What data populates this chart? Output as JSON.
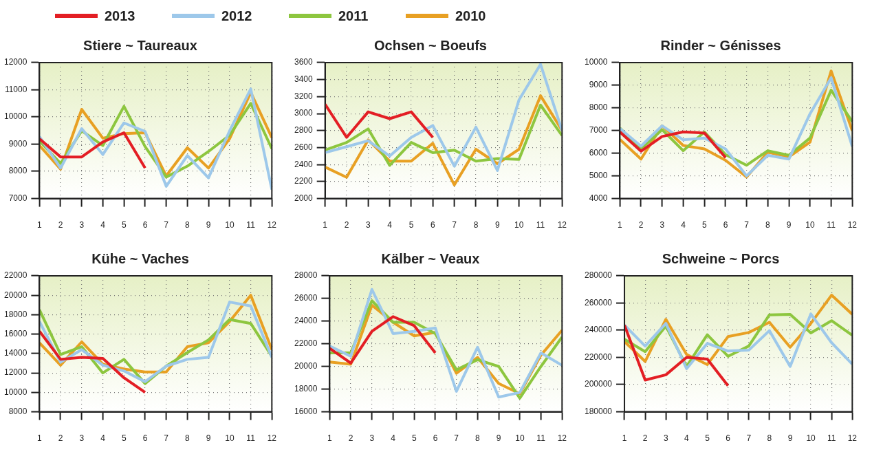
{
  "chart_data": [
    {
      "type": "line",
      "title": "Stiere ~ Taureaux",
      "x": [
        1,
        2,
        3,
        4,
        5,
        6,
        7,
        8,
        9,
        10,
        11,
        12
      ],
      "xlim": [
        1,
        12
      ],
      "xticks": [
        1,
        2,
        3,
        4,
        5,
        6,
        7,
        8,
        9,
        10,
        11,
        12
      ],
      "ylim": [
        7000,
        12000
      ],
      "yticks": [
        7000,
        8000,
        9000,
        10000,
        11000,
        12000
      ],
      "grid": true,
      "legend": "top",
      "series": [
        {
          "name": "2013",
          "color": "#e31e24",
          "values": [
            9200,
            8530,
            8530,
            9080,
            9420,
            8120,
            null,
            null,
            null,
            null,
            null,
            null
          ]
        },
        {
          "name": "2012",
          "color": "#9dc8ea",
          "values": [
            9280,
            8120,
            9570,
            8620,
            9780,
            9470,
            7450,
            8580,
            7760,
            9490,
            11030,
            7330
          ]
        },
        {
          "name": "2011",
          "color": "#8dc63f",
          "values": [
            9120,
            8290,
            9490,
            8950,
            10390,
            8910,
            7790,
            8190,
            8730,
            9330,
            10500,
            8830
          ]
        },
        {
          "name": "2010",
          "color": "#e8a023",
          "values": [
            8950,
            8080,
            10280,
            9220,
            9390,
            9420,
            7830,
            8870,
            8120,
            9200,
            10900,
            9240
          ]
        }
      ]
    },
    {
      "type": "line",
      "title": "Ochsen ~ Boeufs",
      "x": [
        1,
        2,
        3,
        4,
        5,
        6,
        7,
        8,
        9,
        10,
        11,
        12
      ],
      "xlim": [
        1,
        12
      ],
      "xticks": [
        1,
        2,
        3,
        4,
        5,
        6,
        7,
        8,
        9,
        10,
        11,
        12
      ],
      "ylim": [
        2000,
        3600
      ],
      "yticks": [
        2000,
        2200,
        2400,
        2600,
        2800,
        3000,
        3200,
        3400,
        3600
      ],
      "grid": true,
      "series": [
        {
          "color": "#e31e24",
          "values": [
            3110,
            2720,
            3020,
            2940,
            3020,
            2720,
            null,
            null,
            null,
            null,
            null,
            null
          ]
        },
        {
          "color": "#9dc8ea",
          "values": [
            2540,
            2610,
            2680,
            2500,
            2720,
            2860,
            2380,
            2840,
            2330,
            3160,
            3580,
            2800
          ]
        },
        {
          "color": "#8dc63f",
          "values": [
            2570,
            2660,
            2820,
            2390,
            2660,
            2540,
            2570,
            2440,
            2470,
            2460,
            3100,
            2740
          ]
        },
        {
          "color": "#e8a023",
          "values": [
            2370,
            2250,
            2690,
            2440,
            2440,
            2650,
            2160,
            2580,
            2410,
            2580,
            3210,
            2800
          ]
        }
      ]
    },
    {
      "type": "line",
      "title": "Rinder ~ Génisses",
      "x": [
        1,
        2,
        3,
        4,
        5,
        6,
        7,
        8,
        9,
        10,
        11,
        12
      ],
      "xlim": [
        1,
        12
      ],
      "xticks": [
        1,
        2,
        3,
        4,
        5,
        6,
        7,
        8,
        9,
        10,
        11,
        12
      ],
      "ylim": [
        4000,
        10000
      ],
      "yticks": [
        4000,
        5000,
        6000,
        7000,
        8000,
        9000,
        10000
      ],
      "grid": true,
      "series": [
        {
          "color": "#e31e24",
          "values": [
            6940,
            6090,
            6740,
            6940,
            6890,
            5810,
            null,
            null,
            null,
            null,
            null,
            null
          ]
        },
        {
          "color": "#9dc8ea",
          "values": [
            7090,
            6310,
            7210,
            6590,
            6670,
            6190,
            5000,
            5910,
            5740,
            7740,
            9330,
            6290
          ]
        },
        {
          "color": "#8dc63f",
          "values": [
            7110,
            6190,
            7040,
            6110,
            6940,
            5940,
            5470,
            6110,
            5910,
            6670,
            8780,
            7390
          ]
        },
        {
          "color": "#e8a023",
          "values": [
            6610,
            5740,
            7210,
            6340,
            6190,
            5690,
            4950,
            6040,
            5840,
            6490,
            9630,
            6990
          ]
        }
      ]
    },
    {
      "type": "line",
      "title": "Kühe ~ Vaches",
      "x": [
        1,
        2,
        3,
        4,
        5,
        6,
        7,
        8,
        9,
        10,
        11,
        12
      ],
      "xlim": [
        1,
        12
      ],
      "xticks": [
        1,
        2,
        3,
        4,
        5,
        6,
        7,
        8,
        9,
        10,
        11,
        12
      ],
      "ylim": [
        8000,
        22000
      ],
      "yticks": [
        8000,
        10000,
        12000,
        14000,
        16000,
        18000,
        20000,
        22000
      ],
      "grid": true,
      "series": [
        {
          "color": "#e31e24",
          "values": [
            16300,
            13400,
            13600,
            13500,
            11500,
            10000,
            null,
            null,
            null,
            null,
            null,
            null
          ]
        },
        {
          "color": "#9dc8ea",
          "values": [
            17300,
            13100,
            14400,
            12800,
            12200,
            11100,
            12700,
            13400,
            13600,
            19300,
            18900,
            13600
          ]
        },
        {
          "color": "#8dc63f",
          "values": [
            18500,
            13900,
            14700,
            12000,
            13400,
            10900,
            12700,
            14100,
            15400,
            17500,
            17100,
            13700
          ]
        },
        {
          "color": "#e8a023",
          "values": [
            15100,
            12800,
            15200,
            12900,
            12400,
            12100,
            12100,
            14700,
            15100,
            17300,
            20000,
            14400
          ]
        }
      ]
    },
    {
      "type": "line",
      "title": "Kälber ~ Veaux",
      "x": [
        1,
        2,
        3,
        4,
        5,
        6,
        7,
        8,
        9,
        10,
        11,
        12
      ],
      "xlim": [
        1,
        12
      ],
      "xticks": [
        1,
        2,
        3,
        4,
        5,
        6,
        7,
        8,
        9,
        10,
        11,
        12
      ],
      "ylim": [
        16000,
        28000
      ],
      "yticks": [
        16000,
        18000,
        20000,
        22000,
        24000,
        26000,
        28000
      ],
      "grid": true,
      "series": [
        {
          "color": "#e31e24",
          "values": [
            21600,
            20300,
            23100,
            24400,
            23600,
            21200,
            null,
            null,
            null,
            null,
            null,
            null
          ]
        },
        {
          "color": "#9dc8ea",
          "values": [
            21800,
            20900,
            26800,
            22900,
            23100,
            23400,
            17800,
            21700,
            17300,
            17700,
            21200,
            20100
          ]
        },
        {
          "color": "#8dc63f",
          "values": [
            21200,
            21200,
            25800,
            23900,
            23900,
            22900,
            19700,
            20600,
            20000,
            17200,
            20000,
            22600
          ]
        },
        {
          "color": "#e8a023",
          "values": [
            20400,
            20200,
            25400,
            23900,
            22700,
            23000,
            19400,
            20800,
            18500,
            17600,
            21000,
            23200
          ]
        }
      ]
    },
    {
      "type": "line",
      "title": "Schweine ~ Porcs",
      "x": [
        1,
        2,
        3,
        4,
        5,
        6,
        7,
        8,
        9,
        10,
        11,
        12
      ],
      "xlim": [
        1,
        12
      ],
      "xticks": [
        1,
        2,
        3,
        4,
        5,
        6,
        7,
        8,
        9,
        10,
        11,
        12
      ],
      "ylim": [
        180000,
        280000
      ],
      "yticks": [
        180000,
        200000,
        220000,
        240000,
        260000,
        280000
      ],
      "grid": true,
      "series": [
        {
          "color": "#e31e24",
          "values": [
            243700,
            203300,
            207200,
            220000,
            218800,
            199200,
            null,
            null,
            null,
            null,
            null,
            null
          ]
        },
        {
          "color": "#9dc8ea",
          "values": [
            243700,
            228300,
            245000,
            211700,
            230300,
            224700,
            225300,
            239700,
            213300,
            252000,
            230800,
            215000
          ]
        },
        {
          "color": "#8dc63f",
          "values": [
            233300,
            224200,
            243000,
            213300,
            236700,
            220800,
            228300,
            251300,
            251700,
            238000,
            247000,
            236300
          ]
        },
        {
          "color": "#e8a023",
          "values": [
            231700,
            217000,
            248000,
            222200,
            214700,
            235300,
            238300,
            245800,
            227500,
            245000,
            265800,
            251700
          ]
        }
      ]
    }
  ]
}
